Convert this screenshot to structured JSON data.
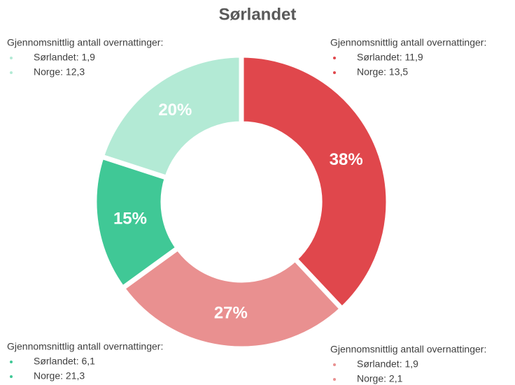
{
  "chart_data": {
    "type": "donut",
    "title": "Sørlandet",
    "values": [
      38,
      27,
      15,
      20
    ],
    "value_labels": [
      "38%",
      "27%",
      "15%",
      "20%"
    ],
    "colors": [
      "#e0474c",
      "#e99090",
      "#40c896",
      "#b3ead5"
    ],
    "annotations": [
      {
        "heading": "Gjennomsnittlig antall overnattinger:",
        "items": [
          "Sørlandet: 11,9",
          "Norge: 13,5"
        ]
      },
      {
        "heading": "Gjennomsnittlig antall overnattinger:",
        "items": [
          "Sørlandet: 1,9",
          "Norge: 2,1"
        ]
      },
      {
        "heading": "Gjennomsnittlig antall overnattinger:",
        "items": [
          "Sørlandet: 6,1",
          "Norge: 21,3"
        ]
      },
      {
        "heading": "Gjennomsnittlig antall overnattinger:",
        "items": [
          "Sørlandet: 1,9",
          "Norge: 12,3"
        ]
      }
    ]
  }
}
